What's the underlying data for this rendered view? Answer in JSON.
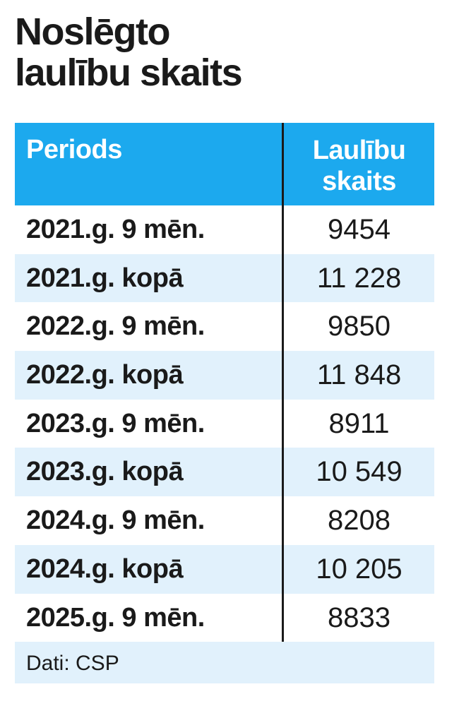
{
  "title_line1": "Noslēgto",
  "title_line2": "laulību skaits",
  "colors": {
    "header_bg": "#1ca9ee",
    "alt_row_bg": "#e1f1fc",
    "text": "#1a1a1a",
    "header_text": "#ffffff"
  },
  "table": {
    "header_period": "Periods",
    "header_count_line1": "Laulību",
    "header_count_line2": "skaits",
    "rows": [
      {
        "period": "2021.g. 9 mēn.",
        "count": "9454"
      },
      {
        "period": "2021.g. kopā",
        "count": "11 228"
      },
      {
        "period": "2022.g. 9 mēn.",
        "count": "9850"
      },
      {
        "period": "2022.g. kopā",
        "count": "11 848"
      },
      {
        "period": "2023.g. 9 mēn.",
        "count": "8911"
      },
      {
        "period": "2023.g. kopā",
        "count": "10 549"
      },
      {
        "period": "2024.g. 9 mēn.",
        "count": "8208"
      },
      {
        "period": "2024.g. kopā",
        "count": "10 205"
      },
      {
        "period": "2025.g. 9 mēn.",
        "count": "8833"
      }
    ]
  },
  "source": "Dati: CSP",
  "chart_data": {
    "type": "table",
    "title": "Noslēgto laulību skaits",
    "columns": [
      "Periods",
      "Laulību skaits"
    ],
    "categories": [
      "2021.g. 9 mēn.",
      "2021.g. kopā",
      "2022.g. 9 mēn.",
      "2022.g. kopā",
      "2023.g. 9 mēn.",
      "2023.g. kopā",
      "2024.g. 9 mēn.",
      "2024.g. kopā",
      "2025.g. 9 mēn."
    ],
    "values": [
      9454,
      11228,
      9850,
      11848,
      8911,
      10549,
      8208,
      10205,
      8833
    ],
    "source": "Dati: CSP"
  }
}
